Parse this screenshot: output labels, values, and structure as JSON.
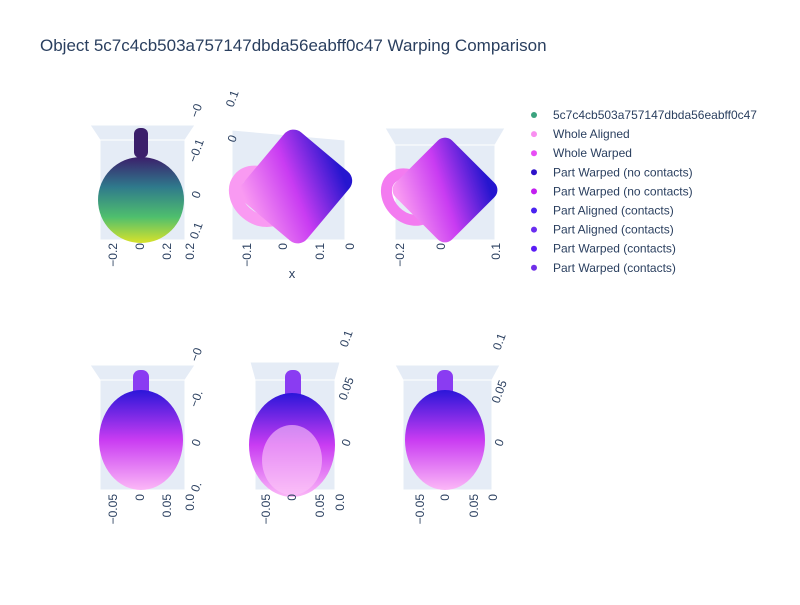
{
  "title": "Object 5c7c4cb503a757147dbda56eabff0c47 Warping Comparison",
  "legend": [
    {
      "name": "5c7c4cb503a757147dbda56eabff0c47",
      "color": "#3ba37e"
    },
    {
      "name": "Whole Aligned",
      "color": "#f98ff0"
    },
    {
      "name": "Whole Warped",
      "color": "#e84df5"
    },
    {
      "name": "Part Warped (no contacts)",
      "color": "#2d12c9"
    },
    {
      "name": "Part Warped (no contacts)",
      "color": "#c21ef0"
    },
    {
      "name": "Part Aligned (contacts)",
      "color": "#4a23f0"
    },
    {
      "name": "Part Aligned (contacts)",
      "color": "#6a2ef0"
    },
    {
      "name": "Part Warped (contacts)",
      "color": "#5a1cf5"
    },
    {
      "name": "Part Warped (contacts)",
      "color": "#7030e8"
    }
  ],
  "subplots": [
    {
      "bottom_ticks": [
        "−0.2",
        "0",
        "0.2",
        "0.2"
      ],
      "side_ticks": [
        "−0",
        "−0.1",
        "0",
        "0.1"
      ]
    },
    {
      "bottom_ticks": [
        "−0.1",
        "0",
        "0.1",
        "0"
      ],
      "side_ticks": [
        "0.1",
        "0"
      ],
      "axis_title": "x"
    },
    {
      "bottom_ticks": [
        "−0.2",
        "0",
        "0.1"
      ],
      "side_ticks": []
    },
    {
      "bottom_ticks": [
        "−0.05",
        "0",
        "0.05",
        "0.0"
      ],
      "side_ticks": [
        "−0",
        "−0.",
        "0",
        "0."
      ]
    },
    {
      "bottom_ticks": [
        "−0.05",
        "0",
        "0.05",
        "0.0"
      ],
      "side_ticks": [
        "0.1",
        "0.05",
        "0"
      ]
    },
    {
      "bottom_ticks": [
        "−0.05",
        "0",
        "0.05",
        "0"
      ],
      "side_ticks": [
        "0.1",
        "0.05",
        "0"
      ]
    }
  ]
}
